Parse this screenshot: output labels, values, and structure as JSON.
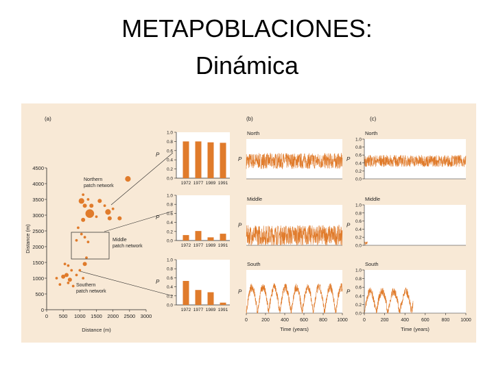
{
  "slide": {
    "title_line1": "METAPOBLACIONES:",
    "title_line2": "Dinámica"
  },
  "colors": {
    "panel_bg": "#f8e9d6",
    "accent": "#e07b2b",
    "plot_bg": "#ffffff",
    "ink": "#222222"
  },
  "chart_data": [
    {
      "type": "scatter",
      "panel_label": "(a)",
      "xlabel": "Distance (m)",
      "ylabel": "Distance (m)",
      "x_ticks": [
        "0",
        "500",
        "1000",
        "1500",
        "2000",
        "2500",
        "3000"
      ],
      "y_ticks": [
        "0",
        "500",
        "1000",
        "1500",
        "2000",
        "2500",
        "3000",
        "3500",
        "4000",
        "4500"
      ],
      "xlim": [
        0,
        3000
      ],
      "ylim": [
        0,
        4500
      ],
      "networks": [
        "Northern patch network",
        "Middle patch network",
        "Southern patch network"
      ],
      "points": [
        {
          "x": 1050,
          "y": 3450,
          "size": 3
        },
        {
          "x": 1150,
          "y": 3300,
          "size": 2
        },
        {
          "x": 1300,
          "y": 3050,
          "size": 5
        },
        {
          "x": 1350,
          "y": 3300,
          "size": 2
        },
        {
          "x": 1100,
          "y": 2850,
          "size": 2
        },
        {
          "x": 1600,
          "y": 3450,
          "size": 2
        },
        {
          "x": 1850,
          "y": 3100,
          "size": 3
        },
        {
          "x": 1900,
          "y": 2900,
          "size": 2
        },
        {
          "x": 2000,
          "y": 3200,
          "size": 1
        },
        {
          "x": 2450,
          "y": 4150,
          "size": 3
        },
        {
          "x": 1750,
          "y": 3300,
          "size": 1
        },
        {
          "x": 1500,
          "y": 2950,
          "size": 1
        },
        {
          "x": 1250,
          "y": 3500,
          "size": 1
        },
        {
          "x": 2200,
          "y": 2900,
          "size": 2
        },
        {
          "x": 1100,
          "y": 3650,
          "size": 1
        },
        {
          "x": 950,
          "y": 2600,
          "size": 1
        },
        {
          "x": 1150,
          "y": 2300,
          "size": 1
        },
        {
          "x": 1050,
          "y": 2400,
          "size": 1
        },
        {
          "x": 1250,
          "y": 2150,
          "size": 1
        },
        {
          "x": 900,
          "y": 2200,
          "size": 1
        },
        {
          "x": 1150,
          "y": 1450,
          "size": 2
        },
        {
          "x": 1200,
          "y": 1650,
          "size": 1
        },
        {
          "x": 600,
          "y": 1100,
          "size": 2
        },
        {
          "x": 700,
          "y": 950,
          "size": 2
        },
        {
          "x": 650,
          "y": 1400,
          "size": 1
        },
        {
          "x": 500,
          "y": 1050,
          "size": 2
        },
        {
          "x": 750,
          "y": 1250,
          "size": 1
        },
        {
          "x": 800,
          "y": 750,
          "size": 1
        },
        {
          "x": 300,
          "y": 1000,
          "size": 1
        },
        {
          "x": 550,
          "y": 1450,
          "size": 1
        },
        {
          "x": 1000,
          "y": 1250,
          "size": 1
        },
        {
          "x": 900,
          "y": 1100,
          "size": 1
        },
        {
          "x": 1100,
          "y": 1000,
          "size": 1
        },
        {
          "x": 400,
          "y": 800,
          "size": 1
        },
        {
          "x": 650,
          "y": 850,
          "size": 1
        }
      ]
    },
    {
      "type": "bar",
      "panel": "Northern patch network",
      "ylabel": "P",
      "categories": [
        "1972",
        "1977",
        "1989",
        "1991"
      ],
      "values": [
        0.8,
        0.8,
        0.78,
        0.77
      ],
      "ylim": [
        0,
        1
      ],
      "y_ticks": [
        "0.0",
        "0.2",
        "0.4",
        "0.6",
        "0.8",
        "1.0"
      ]
    },
    {
      "type": "bar",
      "panel": "Middle patch network",
      "ylabel": "P",
      "categories": [
        "1972",
        "1977",
        "1989",
        "1991"
      ],
      "values": [
        0.12,
        0.21,
        0.07,
        0.15
      ],
      "ylim": [
        0,
        1
      ],
      "y_ticks": [
        "0.0",
        "0.2",
        "0.4",
        "0.6",
        "0.8",
        "1.0"
      ]
    },
    {
      "type": "bar",
      "panel": "Southern patch network",
      "ylabel": "P",
      "categories": [
        "1972",
        "1977",
        "1989",
        "1991"
      ],
      "values": [
        0.53,
        0.33,
        0.28,
        0.05
      ],
      "ylim": [
        0,
        1
      ],
      "y_ticks": [
        "0.0",
        "0.2",
        "0.4",
        "0.6",
        "0.8",
        "1.0"
      ]
    },
    {
      "type": "line",
      "panel_label": "(b)",
      "xlabel": "Time (years)",
      "xlim": [
        0,
        1000
      ],
      "x_ticks": [
        "0",
        "200",
        "400",
        "600",
        "800",
        "1000"
      ],
      "ylim": [
        0,
        1
      ],
      "facets": [
        {
          "name": "North",
          "ylabel": "P",
          "mean": 0.45,
          "spread": 0.2,
          "extinct_at": null
        },
        {
          "name": "Middle",
          "ylabel": "P",
          "mean": 0.25,
          "spread": 0.25,
          "extinct_at": null
        },
        {
          "name": "South",
          "ylabel": "P",
          "mean": 0.3,
          "spread": 0.3,
          "extinct_at": null
        }
      ]
    },
    {
      "type": "line",
      "panel_label": "(c)",
      "xlabel": "Time (years)",
      "xlim": [
        0,
        1000
      ],
      "x_ticks": [
        "0",
        "200",
        "400",
        "600",
        "800",
        "1000"
      ],
      "ylim": [
        0,
        1
      ],
      "y_ticks": [
        "0.0",
        "0.2",
        "0.4",
        "0.6",
        "0.8",
        "1.0"
      ],
      "facets": [
        {
          "name": "North",
          "ylabel": "P",
          "mean": 0.45,
          "spread": 0.15,
          "extinct_at": null
        },
        {
          "name": "Middle",
          "ylabel": "P",
          "mean": 0.05,
          "spread": 0.05,
          "extinct_at": 30
        },
        {
          "name": "South",
          "ylabel": "P",
          "mean": 0.3,
          "spread": 0.25,
          "extinct_at": 480
        }
      ]
    }
  ]
}
